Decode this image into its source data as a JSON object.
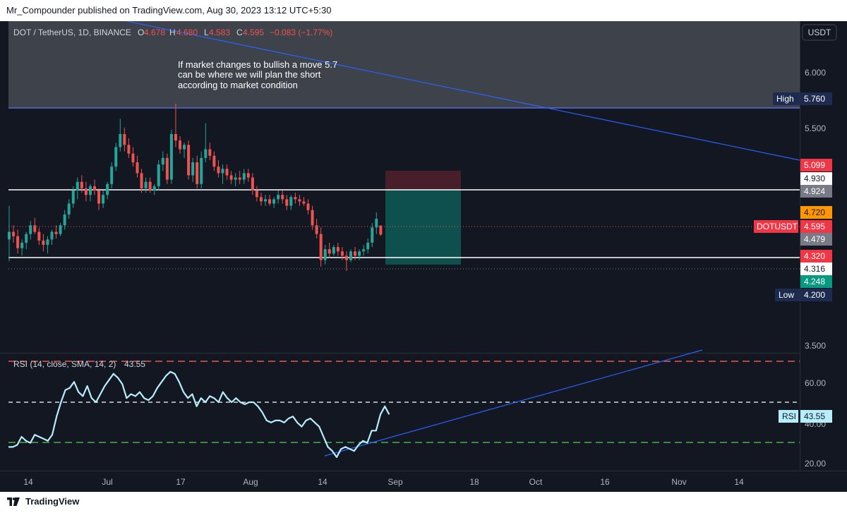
{
  "header": {
    "publish_line": "Mr_Compounder published on TradingView.com, Aug 30, 2023 13:12 UTC+5:30"
  },
  "footer": {
    "brand": "TradingView"
  },
  "legend": {
    "symbol": "DOT / TetherUS, 1D, BINANCE",
    "o_label": "O",
    "o_value": "4.678",
    "h_label": "H",
    "h_value": "4.680",
    "l_label": "L",
    "l_value": "4.583",
    "c_label": "C",
    "c_value": "4.595",
    "change": "−0.083 (−1.77%)"
  },
  "currency_button": "USDT",
  "annotation": {
    "lines": [
      "If market changes to bullish a move 5.7",
      "can be where we will plan the short",
      "according to market condition"
    ]
  },
  "price_labels": {
    "high_tag": "High",
    "high_value": "5.760",
    "target_top": "5.099",
    "resistance_upper": "4.930",
    "resistance_lower": "4.924",
    "entry": "4.720",
    "symbol_tag": "DOTUSDT",
    "last_price": "4.595",
    "mid": "4.479",
    "stop_area": "4.320",
    "support": "4.316",
    "target_low": "4.248",
    "low_tag": "Low",
    "low_value": "4.200"
  },
  "rsi_legend": {
    "label": "RSI (14, close, SMA, 14, 2)",
    "value": "43.55"
  },
  "rsi_tag": {
    "label": "RSI",
    "value": "43.55"
  },
  "colors": {
    "background": "#131722",
    "up": "#26a69a",
    "down": "#ef5350",
    "rsi_line": "#b6eefc",
    "trend_line": "#2962ff",
    "zone": "#3a3d45"
  },
  "chart_data": [
    {
      "type": "candlestick",
      "title": "",
      "price_axis": {
        "ticks": [
          "6.000",
          "5.500",
          "3.500"
        ]
      },
      "time_axis": {
        "ticks": [
          "14",
          "Jul",
          "17",
          "Aug",
          "14",
          "Sep",
          "18",
          "Oct",
          "16",
          "Nov",
          "14"
        ]
      },
      "ohlc_last": {
        "open": 4.678,
        "high": 4.68,
        "low": 4.583,
        "close": 4.595
      },
      "levels": {
        "resistance": 4.924,
        "support": 4.316,
        "high": 5.76,
        "low": 4.2
      },
      "resistance_zone": [
        5.76,
        6.3
      ],
      "short_position": {
        "entry": 4.924,
        "stop": 5.099,
        "target": 4.248
      },
      "candles": [
        [
          4.55,
          4.86,
          4.35,
          4.62
        ],
        [
          4.62,
          4.68,
          4.52,
          4.58
        ],
        [
          4.58,
          4.64,
          4.42,
          4.47
        ],
        [
          4.47,
          4.55,
          4.4,
          4.52
        ],
        [
          4.52,
          4.62,
          4.46,
          4.6
        ],
        [
          4.6,
          4.72,
          4.55,
          4.68
        ],
        [
          4.68,
          4.75,
          4.6,
          4.62
        ],
        [
          4.62,
          4.66,
          4.5,
          4.54
        ],
        [
          4.54,
          4.6,
          4.44,
          4.5
        ],
        [
          4.5,
          4.58,
          4.42,
          4.55
        ],
        [
          4.55,
          4.64,
          4.5,
          4.62
        ],
        [
          4.62,
          4.68,
          4.56,
          4.6
        ],
        [
          4.6,
          4.7,
          4.58,
          4.68
        ],
        [
          4.68,
          4.82,
          4.64,
          4.78
        ],
        [
          4.78,
          4.92,
          4.74,
          4.88
        ],
        [
          4.88,
          5.04,
          4.84,
          5.0
        ],
        [
          5.0,
          5.12,
          4.92,
          5.08
        ],
        [
          5.08,
          5.14,
          4.98,
          5.02
        ],
        [
          5.02,
          5.08,
          4.9,
          4.96
        ],
        [
          4.96,
          5.06,
          4.9,
          5.04
        ],
        [
          5.04,
          5.1,
          4.96,
          5.0
        ],
        [
          5.0,
          5.02,
          4.82,
          4.88
        ],
        [
          4.88,
          5.0,
          4.84,
          4.96
        ],
        [
          4.96,
          5.08,
          4.92,
          5.06
        ],
        [
          5.06,
          5.26,
          5.02,
          5.22
        ],
        [
          5.22,
          5.44,
          5.18,
          5.4
        ],
        [
          5.4,
          5.66,
          5.36,
          5.52
        ],
        [
          5.52,
          5.58,
          5.36,
          5.42
        ],
        [
          5.42,
          5.48,
          5.3,
          5.34
        ],
        [
          5.34,
          5.4,
          5.22,
          5.26
        ],
        [
          5.26,
          5.32,
          5.12,
          5.16
        ],
        [
          5.16,
          5.2,
          4.98,
          5.02
        ],
        [
          5.02,
          5.12,
          4.98,
          5.08
        ],
        [
          5.08,
          5.12,
          4.98,
          5.0
        ],
        [
          5.0,
          5.06,
          4.96,
          5.04
        ],
        [
          5.04,
          5.28,
          5.0,
          5.24
        ],
        [
          5.24,
          5.36,
          5.18,
          5.3
        ],
        [
          5.3,
          5.34,
          5.06,
          5.1
        ],
        [
          5.1,
          5.56,
          5.06,
          5.52
        ],
        [
          5.52,
          5.8,
          5.4,
          5.46
        ],
        [
          5.46,
          5.5,
          5.34,
          5.38
        ],
        [
          5.38,
          5.44,
          5.3,
          5.42
        ],
        [
          5.42,
          5.46,
          5.1,
          5.14
        ],
        [
          5.14,
          5.3,
          5.08,
          5.26
        ],
        [
          5.26,
          5.32,
          5.02,
          5.06
        ],
        [
          5.06,
          5.36,
          5.02,
          5.3
        ],
        [
          5.3,
          5.62,
          5.26,
          5.38
        ],
        [
          5.38,
          5.44,
          5.28,
          5.32
        ],
        [
          5.32,
          5.36,
          5.18,
          5.22
        ],
        [
          5.22,
          5.28,
          5.12,
          5.16
        ],
        [
          5.16,
          5.24,
          5.06,
          5.2
        ],
        [
          5.2,
          5.24,
          5.1,
          5.14
        ],
        [
          5.14,
          5.18,
          5.06,
          5.1
        ],
        [
          5.1,
          5.16,
          5.04,
          5.12
        ],
        [
          5.12,
          5.18,
          5.06,
          5.1
        ],
        [
          5.1,
          5.2,
          5.06,
          5.16
        ],
        [
          5.16,
          5.2,
          5.08,
          5.12
        ],
        [
          5.12,
          5.16,
          4.96,
          5.0
        ],
        [
          5.0,
          5.04,
          4.9,
          4.94
        ],
        [
          4.94,
          4.98,
          4.86,
          4.9
        ],
        [
          4.9,
          4.96,
          4.86,
          4.92
        ],
        [
          4.92,
          4.96,
          4.86,
          4.88
        ],
        [
          4.88,
          4.94,
          4.84,
          4.92
        ],
        [
          4.92,
          5.0,
          4.88,
          4.96
        ],
        [
          4.96,
          5.0,
          4.88,
          4.92
        ],
        [
          4.92,
          4.96,
          4.82,
          4.86
        ],
        [
          4.86,
          4.96,
          4.82,
          4.94
        ],
        [
          4.94,
          4.98,
          4.88,
          4.92
        ],
        [
          4.92,
          4.96,
          4.86,
          4.9
        ],
        [
          4.9,
          4.94,
          4.86,
          4.88
        ],
        [
          4.88,
          4.92,
          4.78,
          4.82
        ],
        [
          4.82,
          4.86,
          4.64,
          4.68
        ],
        [
          4.68,
          4.74,
          4.56,
          4.6
        ],
        [
          4.6,
          4.66,
          4.3,
          4.36
        ],
        [
          4.36,
          4.5,
          4.32,
          4.46
        ],
        [
          4.46,
          4.52,
          4.38,
          4.42
        ],
        [
          4.42,
          4.5,
          4.4,
          4.48
        ],
        [
          4.48,
          4.52,
          4.4,
          4.44
        ],
        [
          4.44,
          4.48,
          4.36,
          4.4
        ],
        [
          4.4,
          4.44,
          4.26,
          4.36
        ],
        [
          4.36,
          4.46,
          4.34,
          4.44
        ],
        [
          4.44,
          4.48,
          4.36,
          4.4
        ],
        [
          4.4,
          4.46,
          4.36,
          4.44
        ],
        [
          4.44,
          4.5,
          4.4,
          4.46
        ],
        [
          4.46,
          4.56,
          4.42,
          4.52
        ],
        [
          4.52,
          4.7,
          4.48,
          4.66
        ],
        [
          4.66,
          4.8,
          4.6,
          4.74
        ],
        [
          4.678,
          4.68,
          4.583,
          4.595
        ]
      ]
    },
    {
      "type": "line",
      "title": "",
      "name": "RSI (14, close, SMA, 14, 2)",
      "y_ticks": [
        60,
        40,
        20
      ],
      "bands": {
        "upper": 70,
        "middle": 50,
        "lower": 30
      },
      "last": 43.55,
      "values": [
        28,
        28,
        29,
        33,
        31,
        30,
        34,
        33,
        32,
        31,
        34,
        43,
        50,
        56,
        57,
        60,
        55,
        53,
        58,
        52,
        50,
        54,
        58,
        61,
        64,
        62,
        59,
        52,
        54,
        53,
        55,
        52,
        51,
        53,
        57,
        60,
        63,
        65,
        64,
        60,
        55,
        52,
        54,
        48,
        52,
        50,
        53,
        52,
        50,
        55,
        52,
        50,
        52,
        50,
        49,
        50,
        50,
        48,
        45,
        41,
        40,
        41,
        41,
        40,
        42,
        43,
        40,
        38,
        41,
        42,
        40,
        38,
        33,
        28,
        26,
        23,
        27,
        28,
        27,
        26,
        29,
        31,
        30,
        36,
        36,
        44,
        48,
        44
      ],
      "trend": {
        "from": 23,
        "to": 51
      }
    }
  ]
}
